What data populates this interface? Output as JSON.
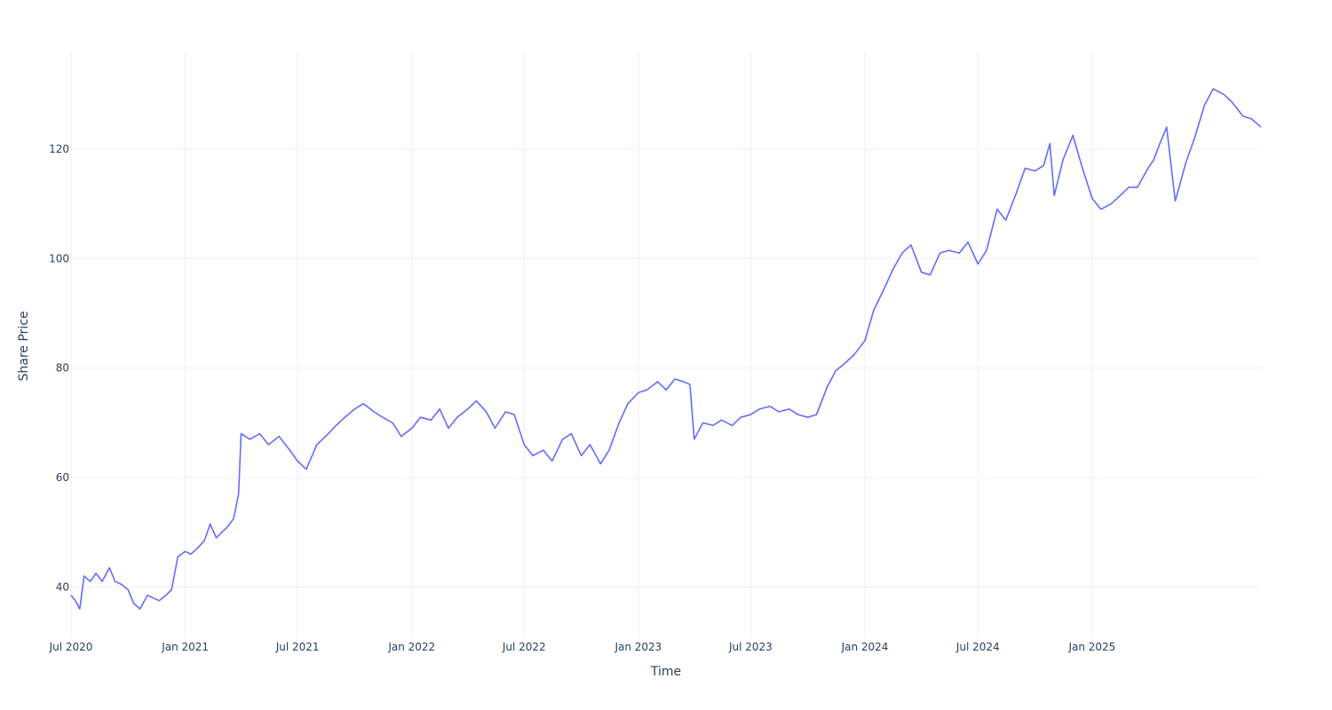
{
  "chart_data": {
    "type": "line",
    "title": "",
    "xlabel": "Time",
    "ylabel": "Share Price",
    "xlim": [
      "2020-07-01",
      "2025-09-30"
    ],
    "ylim": [
      30.5,
      137.5
    ],
    "grid": true,
    "legend": "none",
    "x_ticks": [
      "2020-07-01",
      "2021-01-01",
      "2021-07-01",
      "2022-01-01",
      "2022-07-01",
      "2023-01-01",
      "2023-07-01",
      "2024-01-01",
      "2024-07-01",
      "2025-01-01"
    ],
    "x_tick_labels": [
      "Jul 2020",
      "Jan 2021",
      "Jul 2021",
      "Jan 2022",
      "Jul 2022",
      "Jan 2023",
      "Jul 2023",
      "Jan 2024",
      "Jul 2024",
      "Jan 2025"
    ],
    "y_ticks": [
      40,
      60,
      80,
      100,
      120
    ],
    "y_tick_labels": [
      "40",
      "60",
      "80",
      "100",
      "120"
    ],
    "line_color": "#636efa",
    "series": [
      {
        "x": [
          "2020-07-01",
          "2020-07-08",
          "2020-07-15",
          "2020-07-22",
          "2020-08-01",
          "2020-08-10",
          "2020-08-20",
          "2020-09-01",
          "2020-09-10",
          "2020-09-20",
          "2020-10-01",
          "2020-10-10",
          "2020-10-20",
          "2020-11-01",
          "2020-11-10",
          "2020-11-20",
          "2020-12-01",
          "2020-12-10",
          "2020-12-20",
          "2021-01-01",
          "2021-01-10",
          "2021-01-20",
          "2021-02-01",
          "2021-02-10",
          "2021-02-20",
          "2021-03-01",
          "2021-03-10",
          "2021-03-20",
          "2021-03-28",
          "2021-04-01",
          "2021-04-15",
          "2021-05-01",
          "2021-05-15",
          "2021-06-01",
          "2021-06-15",
          "2021-07-01",
          "2021-07-15",
          "2021-08-01",
          "2021-08-15",
          "2021-09-01",
          "2021-09-15",
          "2021-10-01",
          "2021-10-15",
          "2021-11-01",
          "2021-11-15",
          "2021-12-01",
          "2021-12-15",
          "2022-01-01",
          "2022-01-15",
          "2022-02-01",
          "2022-02-15",
          "2022-03-01",
          "2022-03-15",
          "2022-04-01",
          "2022-04-15",
          "2022-05-01",
          "2022-05-15",
          "2022-06-01",
          "2022-06-15",
          "2022-07-01",
          "2022-07-15",
          "2022-08-01",
          "2022-08-15",
          "2022-09-01",
          "2022-09-15",
          "2022-10-01",
          "2022-10-15",
          "2022-11-01",
          "2022-11-15",
          "2022-12-01",
          "2022-12-15",
          "2023-01-01",
          "2023-01-15",
          "2023-02-01",
          "2023-02-15",
          "2023-03-01",
          "2023-03-15",
          "2023-03-25",
          "2023-04-01",
          "2023-04-15",
          "2023-05-01",
          "2023-05-15",
          "2023-06-01",
          "2023-06-15",
          "2023-07-01",
          "2023-07-15",
          "2023-08-01",
          "2023-08-15",
          "2023-09-01",
          "2023-09-15",
          "2023-10-01",
          "2023-10-15",
          "2023-11-01",
          "2023-11-15",
          "2023-12-01",
          "2023-12-15",
          "2024-01-01",
          "2024-01-15",
          "2024-02-01",
          "2024-02-15",
          "2024-03-01",
          "2024-03-15",
          "2024-04-01",
          "2024-04-15",
          "2024-05-01",
          "2024-05-15",
          "2024-06-01",
          "2024-06-15",
          "2024-07-01",
          "2024-07-15",
          "2024-08-01",
          "2024-08-15",
          "2024-09-01",
          "2024-09-15",
          "2024-10-01",
          "2024-10-15",
          "2024-10-25",
          "2024-11-01",
          "2024-11-15",
          "2024-12-01",
          "2024-12-15",
          "2025-01-01",
          "2025-01-15",
          "2025-02-01",
          "2025-02-15",
          "2025-03-01",
          "2025-03-15",
          "2025-04-01",
          "2025-04-10",
          "2025-04-20",
          "2025-05-01",
          "2025-05-15",
          "2025-06-01",
          "2025-06-15",
          "2025-07-01",
          "2025-07-15",
          "2025-08-01",
          "2025-08-15",
          "2025-09-01",
          "2025-09-15",
          "2025-09-30"
        ],
        "y": [
          38.5,
          37.5,
          36.0,
          42.0,
          41.0,
          42.5,
          41.0,
          43.5,
          41.0,
          40.5,
          39.5,
          37.0,
          36.0,
          38.5,
          38.0,
          37.5,
          38.5,
          39.5,
          45.5,
          46.5,
          46.0,
          47.0,
          48.5,
          51.5,
          49.0,
          50.0,
          51.0,
          52.5,
          57.0,
          68.0,
          67.0,
          68.0,
          66.0,
          67.5,
          65.5,
          63.0,
          61.5,
          66.0,
          67.5,
          69.5,
          71.0,
          72.5,
          73.5,
          72.0,
          71.0,
          70.0,
          67.5,
          69.0,
          71.0,
          70.5,
          72.5,
          69.0,
          71.0,
          72.5,
          74.0,
          72.0,
          69.0,
          72.0,
          71.5,
          66.0,
          64.0,
          65.0,
          63.0,
          67.0,
          68.0,
          64.0,
          66.0,
          62.5,
          65.0,
          70.0,
          73.5,
          75.5,
          76.0,
          77.5,
          76.0,
          78.0,
          77.5,
          77.0,
          67.0,
          70.0,
          69.5,
          70.5,
          69.5,
          71.0,
          71.5,
          72.5,
          73.0,
          72.0,
          72.5,
          71.5,
          71.0,
          71.5,
          76.5,
          79.5,
          81.0,
          82.5,
          85.0,
          90.5,
          94.5,
          98.0,
          101.0,
          102.5,
          97.5,
          97.0,
          101.0,
          101.5,
          101.0,
          103.0,
          99.0,
          101.5,
          109.0,
          107.0,
          112.0,
          116.5,
          116.0,
          117.0,
          121.0,
          111.5,
          118.0,
          122.5,
          117.0,
          111.0,
          109.0,
          110.0,
          111.5,
          113.0,
          113.0,
          116.5,
          118.0,
          121.0,
          124.0,
          110.5,
          117.5,
          122.0,
          128.0,
          131.0,
          130.0,
          128.5,
          126.0,
          125.5,
          124.0
        ]
      }
    ]
  }
}
